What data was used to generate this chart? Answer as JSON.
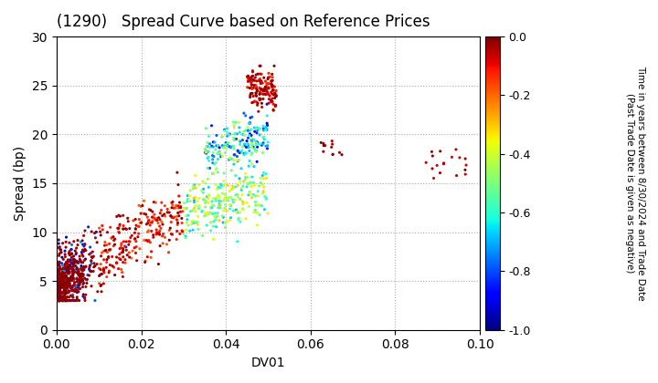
{
  "title": "(1290)   Spread Curve based on Reference Prices",
  "xlabel": "DV01",
  "ylabel": "Spread (bp)",
  "xlim": [
    0.0,
    0.1
  ],
  "ylim": [
    0,
    30
  ],
  "xticks": [
    0.0,
    0.02,
    0.04,
    0.06,
    0.08,
    0.1
  ],
  "yticks": [
    0,
    5,
    10,
    15,
    20,
    25,
    30
  ],
  "colorbar_label_line1": "Time in years between 8/30/2024 and Trade Date",
  "colorbar_label_line2": "(Past Trade Date is given as negative)",
  "cbar_ticks": [
    0.0,
    -0.2,
    -0.4,
    -0.6,
    -0.8,
    -1.0
  ],
  "cmap": "jet",
  "background_color": "#ffffff",
  "grid_color": "#aaaaaa",
  "marker_size": 5
}
